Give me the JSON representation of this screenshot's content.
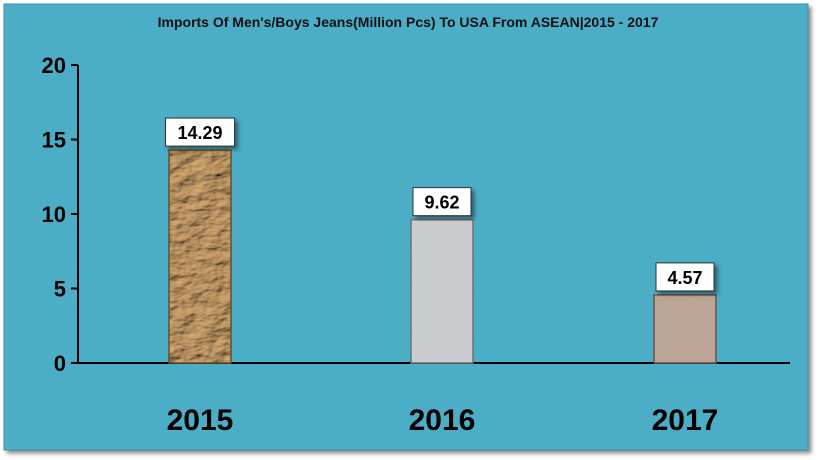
{
  "chart_data": {
    "type": "bar",
    "title": "Imports Of Men's/Boys Jeans(Million Pcs) To USA From ASEAN|2015 - 2017",
    "xlabel": "",
    "ylabel": "",
    "categories": [
      "2015",
      "2016",
      "2017"
    ],
    "values": [
      14.29,
      9.62,
      4.57
    ],
    "data_labels": [
      "14.29",
      "9.62",
      "4.57"
    ],
    "ylim": [
      0,
      20
    ],
    "yticks": [
      "0",
      "5",
      "10",
      "15",
      "20"
    ],
    "grid": false,
    "legend": "none"
  },
  "colors": {
    "background": "#4badc6",
    "axis": "#000000",
    "bar_textures": [
      "kraft-paper-brown",
      "granite-gray",
      "sand-speckle-tan"
    ]
  }
}
